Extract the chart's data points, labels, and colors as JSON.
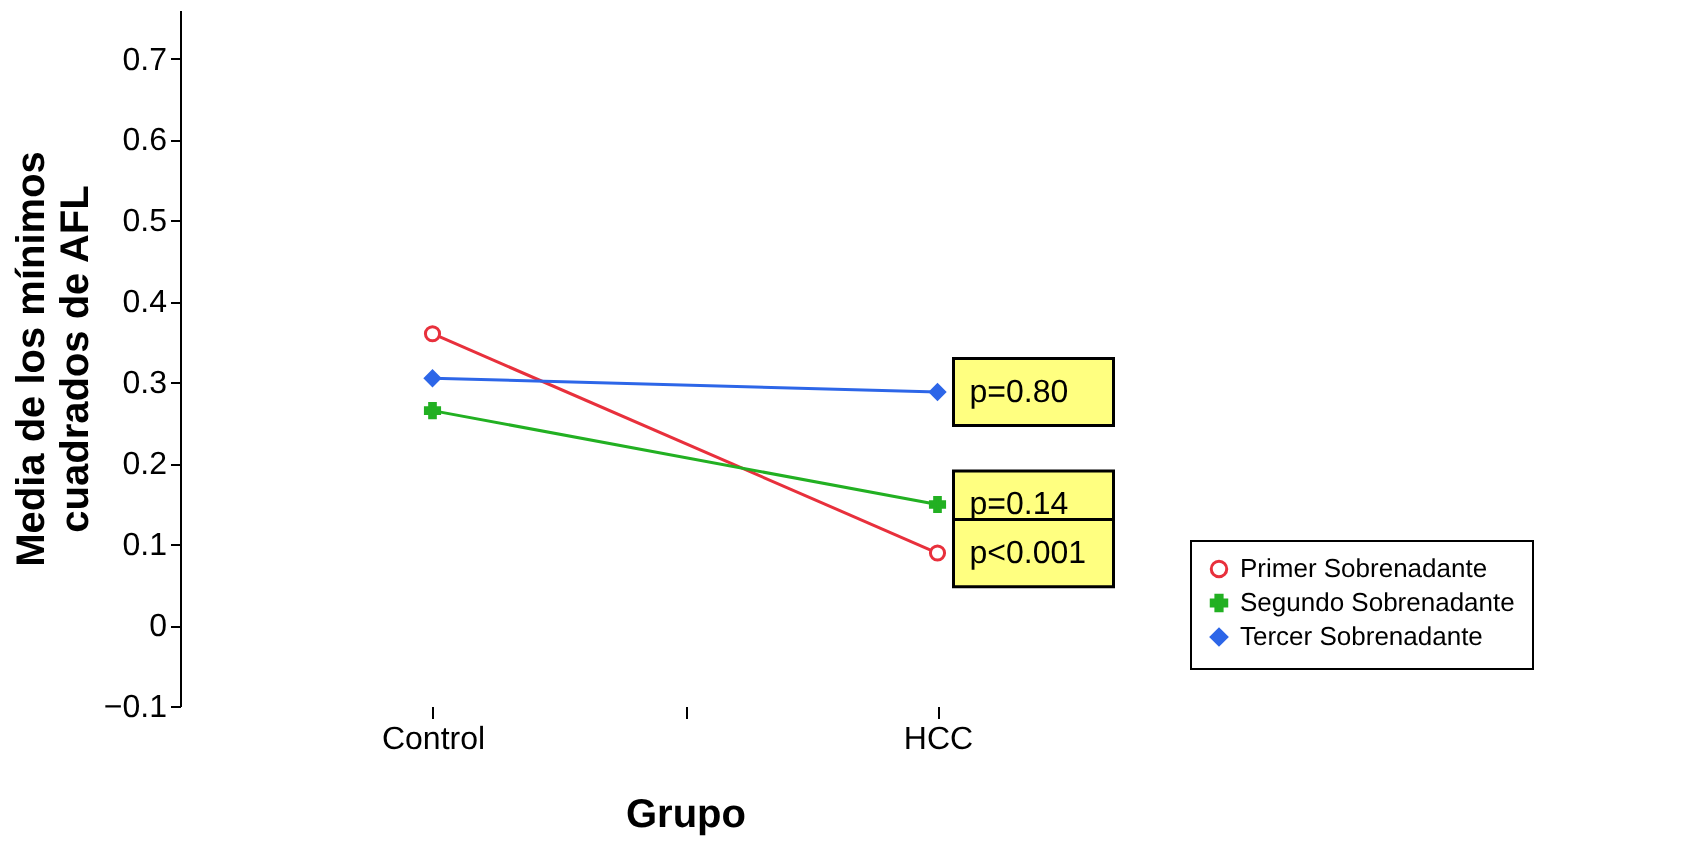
{
  "chart_data": {
    "type": "line",
    "xlabel": "Grupo",
    "ylabel": "Media de los mínimos cuadrados de AFL",
    "categories": [
      "Control",
      "HCC"
    ],
    "series": [
      {
        "name": "Primer Sobrenadante",
        "color": "#e8303c",
        "marker": "circle",
        "values": [
          0.36,
          0.089
        ]
      },
      {
        "name": "Segundo Sobrenadante",
        "color": "#22b022",
        "marker": "cross",
        "values": [
          0.265,
          0.149
        ]
      },
      {
        "name": "Tercer Sobrenadante",
        "color": "#2d66e8",
        "marker": "diamond",
        "values": [
          0.305,
          0.288
        ]
      }
    ],
    "ylim": [
      -0.1,
      0.76
    ],
    "yticks": [
      -0.1,
      0,
      0.1,
      0.2,
      0.3,
      0.4,
      0.5,
      0.6,
      0.7
    ],
    "grid": false,
    "legend": "bottom right",
    "annotations": [
      {
        "text": "p=0.80",
        "x": "HCC",
        "y": 0.288
      },
      {
        "text": "p=0.14",
        "x": "HCC",
        "y": 0.149
      },
      {
        "text": "p<0.001",
        "x": "HCC",
        "y": 0.089
      }
    ]
  }
}
